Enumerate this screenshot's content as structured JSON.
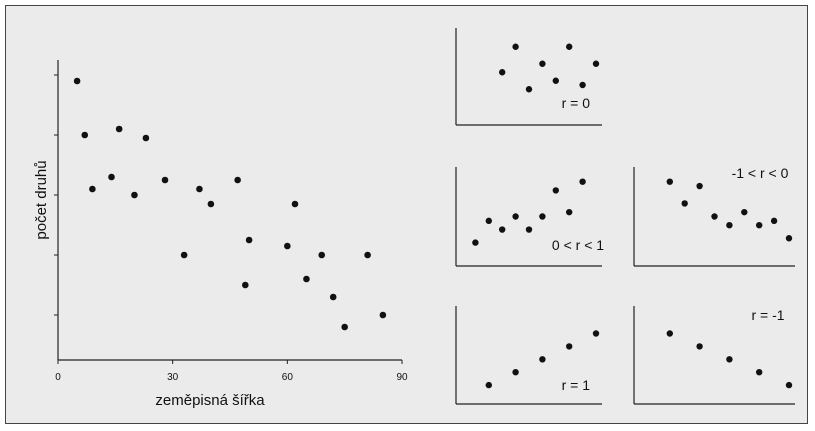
{
  "chart_data": [
    {
      "type": "scatter",
      "title": "",
      "xlabel": "zeměpisná šířka",
      "ylabel": "počet druhů",
      "xlim": [
        0,
        90
      ],
      "ylim": [
        0,
        10
      ],
      "x_ticks": [
        0,
        30,
        60,
        90
      ],
      "y_tick_values": [
        1.5,
        3.5,
        5.5,
        7.5,
        9.5
      ],
      "x": [
        5,
        7,
        9,
        14,
        16,
        20,
        23,
        28,
        33,
        37,
        40,
        47,
        49,
        50,
        60,
        62,
        65,
        69,
        72,
        75,
        81,
        85
      ],
      "y": [
        9.3,
        7.5,
        5.7,
        6.1,
        7.7,
        5.5,
        7.4,
        6.0,
        3.5,
        5.7,
        5.2,
        6.0,
        2.5,
        4.0,
        3.8,
        5.2,
        2.7,
        3.5,
        2.1,
        1.1,
        3.5,
        1.5
      ],
      "grid": false
    },
    {
      "type": "scatter",
      "annotation": "r = 0",
      "xlim": [
        0,
        10
      ],
      "ylim": [
        0,
        10
      ],
      "x": [
        3,
        4,
        5,
        6,
        7,
        8,
        9,
        10
      ],
      "y": [
        5.5,
        8.5,
        3.5,
        6.5,
        4.5,
        8.5,
        4,
        6.5
      ]
    },
    {
      "type": "scatter",
      "annotation": "0 < r < 1",
      "xlim": [
        0,
        10
      ],
      "ylim": [
        0,
        10
      ],
      "x": [
        1,
        2,
        3,
        4,
        5,
        6,
        7,
        8,
        9
      ],
      "y": [
        2,
        4.5,
        3.5,
        5,
        3.5,
        5,
        8,
        5.5,
        9
      ],
      "points_extra": []
    },
    {
      "type": "scatter",
      "annotation": "-1 < r < 0",
      "xlim": [
        0,
        10
      ],
      "ylim": [
        0,
        10
      ],
      "x": [
        2,
        3,
        4,
        5,
        6,
        7,
        8,
        9,
        10
      ],
      "y": [
        9,
        6.5,
        8.5,
        5,
        4,
        5.5,
        4,
        4.5,
        2.5
      ]
    },
    {
      "type": "scatter",
      "annotation": "r = 1",
      "xlim": [
        0,
        10
      ],
      "ylim": [
        0,
        10
      ],
      "x": [
        2,
        4,
        6,
        8,
        10
      ],
      "y": [
        1.5,
        3,
        4.5,
        6,
        7.5
      ]
    },
    {
      "type": "scatter",
      "annotation": "r = -1",
      "xlim": [
        0,
        10
      ],
      "ylim": [
        0,
        10
      ],
      "x": [
        2,
        4,
        6,
        8,
        10
      ],
      "y": [
        7.5,
        6,
        4.5,
        3,
        1.5
      ]
    }
  ]
}
